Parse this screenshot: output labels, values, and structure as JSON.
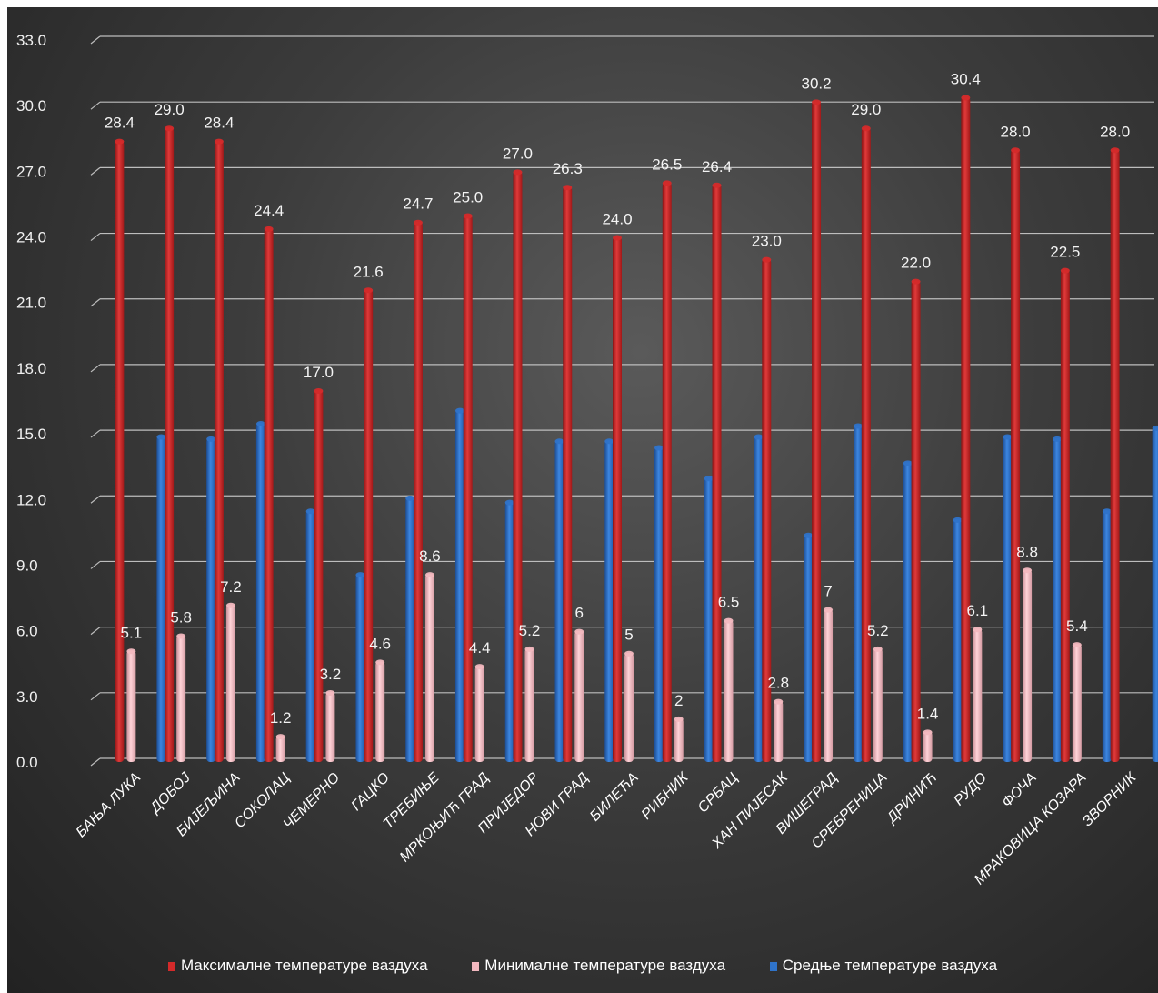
{
  "chart_data": {
    "type": "bar",
    "title": "",
    "xlabel": "",
    "ylabel": "",
    "ylim": [
      0,
      33
    ],
    "yticks": [
      "0.0",
      "3.0",
      "6.0",
      "9.0",
      "12.0",
      "15.0",
      "18.0",
      "21.0",
      "24.0",
      "27.0",
      "30.0",
      "33.0"
    ],
    "grid": true,
    "legend_position": "bottom",
    "categories": [
      "БАЊА ЛУКА",
      "ДОБОЈ",
      "БИЈЕЉИНА",
      "СОКОЛАЦ",
      "ЧЕМЕРНО",
      "ГАЦКО",
      "ТРЕБИЊЕ",
      "МРКОЊИЋ ГРАД",
      "ПРИЈЕДОР",
      "НОВИ ГРАД",
      "БИЛЕЋА",
      "РИБНИК",
      "СРБАЦ",
      "ХАН ПИЈЕСАК",
      "ВИШЕГРАД",
      "СРЕБРЕНИЦА",
      "ДРИНИЋ",
      "РУДО",
      "ФОЧА",
      "МРАКОВИЦА КОЗАРА",
      "ЗВОРНИК"
    ],
    "series": [
      {
        "name": "Максималне температуре  ваздуха",
        "color": "#d42a2a",
        "values": [
          28.4,
          29.0,
          28.4,
          24.4,
          17.0,
          21.6,
          24.7,
          25.0,
          27.0,
          26.3,
          24.0,
          26.5,
          26.4,
          23.0,
          30.2,
          29.0,
          22.0,
          30.4,
          28.0,
          22.5,
          28.0
        ],
        "labels": [
          "28.4",
          "29.0",
          "28.4",
          "24.4",
          "17.0",
          "21.6",
          "24.7",
          "25.0",
          "27.0",
          "26.3",
          "24.0",
          "26.5",
          "26.4",
          "23.0",
          "30.2",
          "29.0",
          "22.0",
          "30.4",
          "28.0",
          "22.5",
          "28.0"
        ]
      },
      {
        "name": "Минималне температуре ваздуха",
        "color": "#f2b8bf",
        "values": [
          5.1,
          5.8,
          7.2,
          1.2,
          3.2,
          4.6,
          8.6,
          4.4,
          5.2,
          6,
          5,
          2,
          6.5,
          2.8,
          7,
          5.2,
          1.4,
          6.1,
          8.8,
          5.4,
          null
        ],
        "labels": [
          "5.1",
          "5.8",
          "7.2",
          "1.2",
          "3.2",
          "4.6",
          "8.6",
          "4.4",
          "5.2",
          "6",
          "5",
          "2",
          "6.5",
          "2.8",
          "7",
          "5.2",
          "1.4",
          "6.1",
          "8.8",
          "5.4",
          ""
        ]
      },
      {
        "name": "Средње температуре ваздуха",
        "color": "#2f73c9",
        "values": [
          14.9,
          14.8,
          15.5,
          11.5,
          8.6,
          12.1,
          16.1,
          11.9,
          14.7,
          14.7,
          14.4,
          13.0,
          14.9,
          10.4,
          15.4,
          13.7,
          11.1,
          14.9,
          14.8,
          11.5,
          15.3
        ],
        "labels": []
      }
    ]
  }
}
